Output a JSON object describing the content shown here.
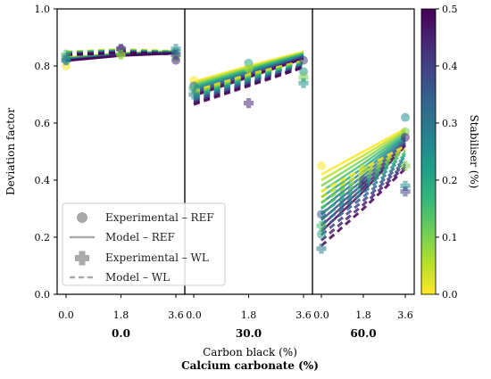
{
  "chart_data": {
    "type": "line",
    "ylabel": "Deviation factor",
    "xlabel": "Carbon black (%)",
    "xlabel2": "Calcium carbonate (%)",
    "ylim": [
      0.0,
      1.0
    ],
    "yticks": [
      "0.0",
      "0.2",
      "0.4",
      "0.6",
      "0.8",
      "1.0"
    ],
    "xtick_labels": [
      "0.0",
      "1.8",
      "3.6"
    ],
    "panels": [
      {
        "label": "0.0",
        "ref_model_range": [
          [
            0.83,
            0.845,
            0.853
          ],
          [
            0.818,
            0.836,
            0.844
          ]
        ],
        "wl_model_range": [
          [
            0.85,
            0.858,
            0.852
          ],
          [
            0.838,
            0.846,
            0.842
          ]
        ],
        "ref_points": [
          [
            0.0,
            0.8
          ],
          [
            0.0,
            0.83
          ],
          [
            0.0,
            0.82
          ],
          [
            1.8,
            0.84
          ],
          [
            1.8,
            0.86
          ],
          [
            3.6,
            0.85
          ],
          [
            3.6,
            0.83
          ],
          [
            3.6,
            0.82
          ]
        ],
        "wl_points": [
          [
            0.0,
            0.84
          ],
          [
            0.0,
            0.82
          ],
          [
            1.8,
            0.86
          ],
          [
            1.8,
            0.84
          ],
          [
            3.6,
            0.86
          ],
          [
            3.6,
            0.84
          ]
        ]
      },
      {
        "label": "30.0",
        "ref_model_range": [
          [
            0.745,
            0.8,
            0.85
          ],
          [
            0.695,
            0.76,
            0.825
          ]
        ],
        "wl_model_range": [
          [
            0.712,
            0.77,
            0.818
          ],
          [
            0.665,
            0.73,
            0.795
          ]
        ],
        "ref_points": [
          [
            0.0,
            0.75
          ],
          [
            0.0,
            0.73
          ],
          [
            1.8,
            0.81
          ],
          [
            1.8,
            0.79
          ],
          [
            3.6,
            0.82
          ],
          [
            3.6,
            0.78
          ]
        ],
        "wl_points": [
          [
            0.0,
            0.72
          ],
          [
            0.0,
            0.7
          ],
          [
            1.8,
            0.67
          ],
          [
            3.6,
            0.76
          ],
          [
            3.6,
            0.74
          ]
        ]
      },
      {
        "label": "60.0",
        "ref_model_range": [
          [
            0.42,
            0.5,
            0.58
          ],
          [
            0.22,
            0.36,
            0.52
          ]
        ],
        "wl_model_range": [
          [
            0.36,
            0.44,
            0.52
          ],
          [
            0.17,
            0.3,
            0.44
          ]
        ],
        "ref_points": [
          [
            0.0,
            0.45
          ],
          [
            0.0,
            0.28
          ],
          [
            0.0,
            0.21
          ],
          [
            1.8,
            0.44
          ],
          [
            1.8,
            0.4
          ],
          [
            3.6,
            0.62
          ],
          [
            3.6,
            0.57
          ],
          [
            3.6,
            0.55
          ]
        ],
        "wl_points": [
          [
            0.0,
            0.24
          ],
          [
            0.0,
            0.16
          ],
          [
            1.8,
            0.38
          ],
          [
            3.6,
            0.45
          ],
          [
            3.6,
            0.38
          ],
          [
            3.6,
            0.36
          ]
        ]
      }
    ],
    "colorbar": {
      "label": "Stabiliser (%)",
      "min": 0.0,
      "max": 0.5,
      "ticks": [
        "0.0",
        "0.1",
        "0.2",
        "0.3",
        "0.4",
        "0.5"
      ],
      "colormap": [
        "#fde725",
        "#b5de2b",
        "#6ece58",
        "#35b779",
        "#1f9e89",
        "#26828e",
        "#31688e",
        "#3e4989",
        "#482878",
        "#440154"
      ]
    },
    "legend": {
      "placement": "lower-left",
      "entries": [
        "Experimental – REF",
        "Model – REF",
        "Experimental – WL",
        "Model – WL"
      ]
    }
  }
}
